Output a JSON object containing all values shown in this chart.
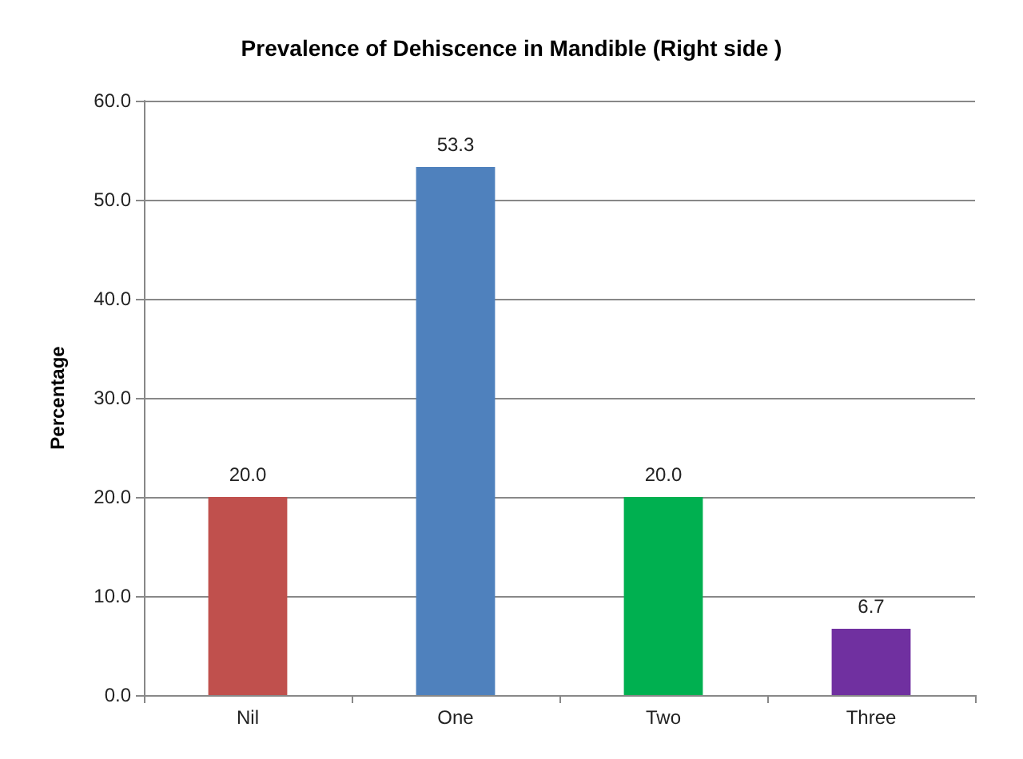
{
  "chart_data": {
    "type": "bar",
    "title": "Prevalence of Dehiscence in Mandible (Right side )",
    "ylabel": "Percentage",
    "categories": [
      "Nil",
      "One",
      "Two",
      "Three"
    ],
    "values": [
      20.0,
      53.3,
      20.0,
      6.7
    ],
    "colors": [
      "#c0504d",
      "#4f81bd",
      "#00b050",
      "#7030a0"
    ],
    "value_labels": [
      "20.0",
      "53.3",
      "20.0",
      "6.7"
    ],
    "ylim": [
      0,
      60
    ],
    "yticks": [
      {
        "value": 0,
        "label": "0.0"
      },
      {
        "value": 10,
        "label": "10.0"
      },
      {
        "value": 20,
        "label": "20.0"
      },
      {
        "value": 30,
        "label": "30.0"
      },
      {
        "value": 40,
        "label": "40.0"
      },
      {
        "value": 50,
        "label": "50.0"
      },
      {
        "value": 60,
        "label": "60.0"
      }
    ],
    "grid": "y"
  }
}
